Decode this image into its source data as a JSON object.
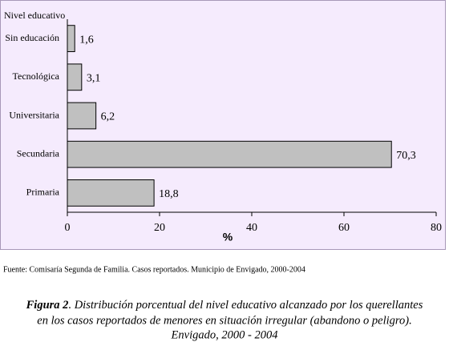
{
  "chart_data": {
    "type": "barh",
    "ylabel": "Nivel educativo",
    "xlabel": "%",
    "categories": [
      "Sin educación",
      "Tecnológica",
      "Universitaria",
      "Secundaria",
      "Primaria"
    ],
    "values": [
      1.6,
      3.1,
      6.2,
      70.3,
      18.8
    ],
    "value_labels": [
      "1,6",
      "3,1",
      "6,2",
      "70,3",
      "18,8"
    ],
    "color": "#c0c0c0",
    "xlim": [
      0,
      80
    ],
    "xticks": [
      0,
      20,
      40,
      60,
      80
    ],
    "source": "Fuente: Comisaría Segunda de Familia.  Casos reportados.  Municipio de Envigado, 2000-2004",
    "caption_label": "Figura 2",
    "caption_lines": [
      ". Distribución porcentual del nivel educativo alcanzado por los querellantes",
      "en los casos reportados de menores en situación irregular (abandono o peligro).",
      "Envigado, 2000 - 2004"
    ]
  }
}
